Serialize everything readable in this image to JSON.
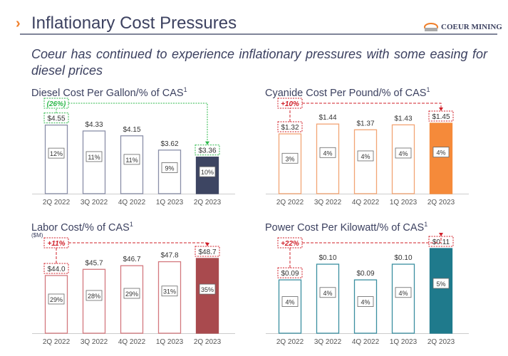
{
  "header": {
    "title": "Inflationary Cost Pressures",
    "logo_text": "COEUR MINING",
    "subtitle": "Coeur has continued to experience inflationary pressures with some easing for diesel prices"
  },
  "chart_data": [
    {
      "type": "bar",
      "title": "Diesel Cost Per Gallon/% of CAS",
      "title_sup": "1",
      "unit": "",
      "categories": [
        "2Q 2022",
        "3Q 2022",
        "4Q 2022",
        "1Q 2023",
        "2Q 2023"
      ],
      "values": [
        4.55,
        4.33,
        4.15,
        3.62,
        3.36
      ],
      "value_labels": [
        "$4.55",
        "$4.33",
        "$4.15",
        "$3.62",
        "$3.36"
      ],
      "pct_of_cas": [
        "12%",
        "11%",
        "11%",
        "9%",
        "10%"
      ],
      "change_label": "(26%)",
      "change_color": "#2db84a",
      "outline": "#8a8fa8",
      "fill": "#3d4562",
      "ylim": [
        2.0,
        5.44
      ]
    },
    {
      "type": "bar",
      "title": "Cyanide Cost Per Pound/% of CAS",
      "title_sup": "1",
      "unit": "",
      "categories": [
        "2Q 2022",
        "3Q 2022",
        "4Q 2022",
        "1Q 2023",
        "2Q 2023"
      ],
      "values": [
        1.32,
        1.44,
        1.37,
        1.43,
        1.45
      ],
      "value_labels": [
        "$1.32",
        "$1.44",
        "$1.37",
        "$1.43",
        "$1.45"
      ],
      "pct_of_cas": [
        "3%",
        "4%",
        "4%",
        "4%",
        "4%"
      ],
      "change_label": "+10%",
      "change_color": "#d0202a",
      "outline": "#f2a474",
      "fill": "#f58a3a",
      "ylim": [
        0.59,
        1.72
      ]
    },
    {
      "type": "bar",
      "title": "Labor Cost/% of CAS",
      "title_sup": "1",
      "unit": "($M)",
      "categories": [
        "2Q 2022",
        "3Q 2022",
        "4Q 2022",
        "1Q 2023",
        "2Q 2023"
      ],
      "values": [
        44.0,
        45.7,
        46.7,
        47.8,
        48.7
      ],
      "value_labels": [
        "$44.0",
        "$45.7",
        "$46.7",
        "$47.8",
        "$48.7"
      ],
      "pct_of_cas": [
        "29%",
        "28%",
        "29%",
        "31%",
        "35%"
      ],
      "change_label": "+11%",
      "change_color": "#d0202a",
      "outline": "#d4787e",
      "fill": "#a94a4e",
      "ylim": [
        28.1,
        53.6
      ]
    },
    {
      "type": "bar",
      "title": "Power Cost Per Kilowatt/% of CAS",
      "title_sup": "1",
      "unit": "",
      "categories": [
        "2Q 2022",
        "3Q 2022",
        "4Q 2022",
        "1Q 2023",
        "2Q 2023"
      ],
      "values": [
        0.09,
        0.1,
        0.09,
        0.1,
        0.11
      ],
      "value_labels": [
        "$0.09",
        "$0.10",
        "$0.09",
        "$0.10",
        "$0.11"
      ],
      "pct_of_cas": [
        "4%",
        "4%",
        "4%",
        "4%",
        "5%"
      ],
      "change_label": "+22%",
      "change_color": "#d0202a",
      "outline": "#3a8fa0",
      "fill": "#1f7a8c",
      "ylim": [
        0.056,
        0.115
      ]
    }
  ]
}
